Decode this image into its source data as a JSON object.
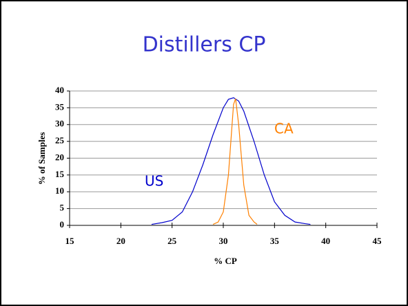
{
  "chart_data": {
    "type": "line",
    "title": "Distillers CP",
    "xlabel": "% CP",
    "ylabel": "% of Samples",
    "xlim": [
      15,
      45
    ],
    "xticks": [
      15,
      20,
      25,
      30,
      35,
      40,
      45
    ],
    "ylim": [
      0,
      40
    ],
    "yticks": [
      0,
      5,
      10,
      15,
      20,
      25,
      30,
      35,
      40
    ],
    "grid": true,
    "series": [
      {
        "name": "US",
        "color": "#0000cc",
        "x": [
          23,
          24,
          25,
          26,
          27,
          28,
          29,
          30,
          30.5,
          31,
          31.5,
          32,
          33,
          34,
          35,
          36,
          37,
          38,
          38.5
        ],
        "values": [
          0.3,
          0.8,
          1.5,
          4,
          10,
          18,
          27,
          35,
          37.5,
          38,
          37,
          34,
          25,
          15,
          7,
          3,
          1,
          0.5,
          0.3
        ]
      },
      {
        "name": "CA",
        "color": "#ff8000",
        "x": [
          29,
          29.5,
          30,
          30.5,
          31,
          31.2,
          31.5,
          32,
          32.5,
          33,
          33.3
        ],
        "values": [
          0.3,
          1,
          4,
          15,
          36,
          37.7,
          30,
          12,
          3,
          1,
          0.3
        ]
      }
    ]
  }
}
